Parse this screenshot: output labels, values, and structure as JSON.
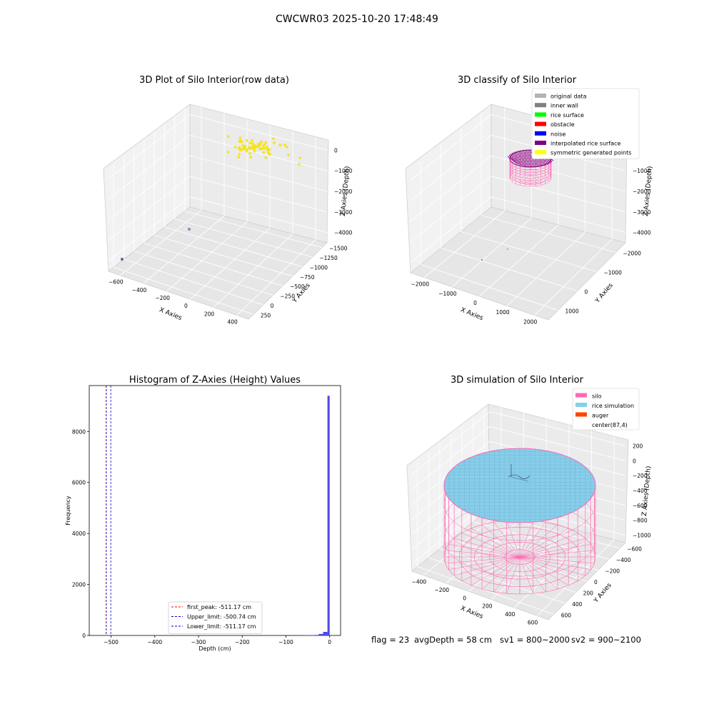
{
  "suptitle": "CWCWR03 2025-10-20 17:48:49",
  "status": {
    "flag": "flag = 23",
    "avg_depth": "avgDepth = 58 cm",
    "sv1": "sv1 = 800~2000",
    "sv2": "sv2 = 900~2100"
  },
  "colors": {
    "scatter_yellow": "#f5e31f",
    "scatter_purple": "#6a5da0",
    "hist_bar": "#4a4ae8",
    "silo": "#ff69b4",
    "rice": "#87ceeb",
    "auger": "#ff4500",
    "wall": "#808080",
    "rice_surface": "#00ff00",
    "obstacle": "#ff0000",
    "noise": "#0000ff",
    "interp": "#800080",
    "orig": "#b3b3b3",
    "sym": "#ffff00"
  },
  "chart_data": [
    {
      "type": "scatter",
      "title": "3D Plot of Silo Interior(row data)",
      "xlabel": "X Axies",
      "ylabel": "Y Axies",
      "zlabel": "Z Axies (Depth)",
      "x_ticks": [
        "−600",
        "−400",
        "−200",
        "0",
        "200",
        "400"
      ],
      "y_ticks": [
        "250",
        "0",
        "−250",
        "−500",
        "−750",
        "−1000",
        "−1250",
        "−1500"
      ],
      "z_ticks": [
        "0",
        "−1000",
        "−2000",
        "−3000",
        "−4000"
      ],
      "points_note": "dense yellow cluster near z≈0; two purple outliers at depth"
    },
    {
      "type": "scatter",
      "title": "3D classify of Silo Interior",
      "xlabel": "X Axies",
      "ylabel": "Y Axies",
      "zlabel": "Z Axies (Depth)",
      "x_ticks": [
        "−2000",
        "−1000",
        "0",
        "1000",
        "2000"
      ],
      "y_ticks": [
        "1000",
        "0",
        "−1000",
        "−2000"
      ],
      "z_ticks": [
        "0",
        "−1000",
        "−2000",
        "−3000",
        "−4000"
      ],
      "legend_position": "top-right",
      "legend": [
        {
          "label": "original data",
          "color": "#b3b3b3"
        },
        {
          "label": "inner wall",
          "color": "#808080"
        },
        {
          "label": "rice surface",
          "color": "#00ff00"
        },
        {
          "label": "obstacle",
          "color": "#ff0000"
        },
        {
          "label": "noise",
          "color": "#0000ff"
        },
        {
          "label": "interpolated rice surface",
          "color": "#800080"
        },
        {
          "label": "symmetric generated points",
          "color": "#ffff00"
        }
      ]
    },
    {
      "type": "bar",
      "title": "Histogram of Z-Axies (Height) Values",
      "xlabel": "Depth (cm)",
      "ylabel": "Frequency",
      "xlim": [
        -550,
        25
      ],
      "ylim": [
        0,
        9800
      ],
      "x_ticks": [
        -500,
        -400,
        -300,
        -200,
        -100,
        0
      ],
      "x_tick_labels": [
        "−500",
        "−400",
        "−300",
        "−200",
        "−100",
        "0"
      ],
      "y_ticks": [
        0,
        2000,
        4000,
        6000,
        8000
      ],
      "y_tick_labels": [
        "0",
        "2000",
        "4000",
        "6000",
        "8000"
      ],
      "bins": [
        {
          "start": -55,
          "end": -45,
          "value": 10
        },
        {
          "start": -45,
          "end": -35,
          "value": 15
        },
        {
          "start": -35,
          "end": -25,
          "value": 20
        },
        {
          "start": -25,
          "end": -15,
          "value": 60
        },
        {
          "start": -15,
          "end": -5,
          "value": 140
        },
        {
          "start": -5,
          "end": 0,
          "value": 9400
        }
      ],
      "vlines": [
        {
          "x": -511.17,
          "color": "#ff0000",
          "label": "first_peak: -511.17 cm"
        },
        {
          "x": -500.74,
          "color": "#0000cc",
          "label": "Upper_limit: -500.74 cm"
        },
        {
          "x": -511.17,
          "color": "#0000cc",
          "label": "Lower_limit: -511.17 cm"
        }
      ],
      "legend_position": "bottom-center"
    },
    {
      "type": "surface",
      "title": "3D simulation of Silo Interior",
      "xlabel": "X Axies",
      "ylabel": "Y Axies",
      "zlabel": "Z Axies (Depth)",
      "x_ticks": [
        "−400",
        "−200",
        "0",
        "200",
        "400",
        "600"
      ],
      "y_ticks": [
        "600",
        "400",
        "200",
        "0",
        "−200",
        "−400",
        "−600"
      ],
      "z_ticks": [
        "200",
        "0",
        "−200",
        "−400",
        "−600",
        "−800",
        "−1000"
      ],
      "legend_position": "top-right",
      "legend": [
        {
          "label": "silo",
          "color": "#ff69b4"
        },
        {
          "label": "rice simulation",
          "color": "#87ceeb"
        },
        {
          "label": "auger",
          "color": "#ff4500"
        },
        {
          "label": "center(87,4)",
          "color": ""
        }
      ]
    }
  ]
}
